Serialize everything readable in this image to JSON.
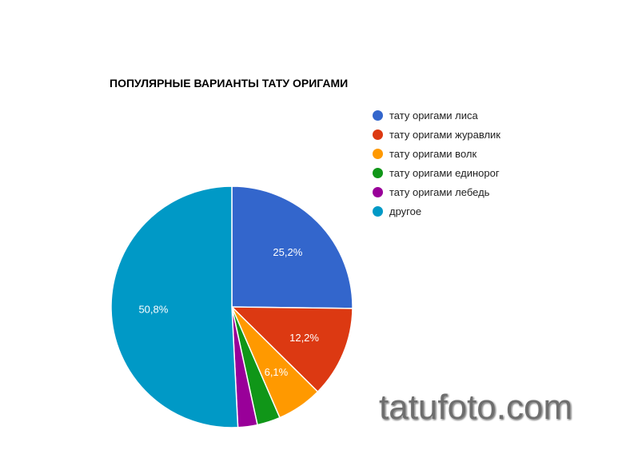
{
  "chart_data": {
    "type": "pie",
    "title": "ПОПУЛЯРНЫЕ ВАРИАНТЫ ТАТУ ОРИГАМИ",
    "legend_position": "right",
    "slices": [
      {
        "label": "тату оригами лиса",
        "value": 25.2,
        "display": "25,2%",
        "color": "#3366cc"
      },
      {
        "label": "тату оригами журавлик",
        "value": 12.2,
        "display": "12,2%",
        "color": "#dc3912"
      },
      {
        "label": "тату оригами волк",
        "value": 6.1,
        "display": "6,1%",
        "color": "#ff9900"
      },
      {
        "label": "тату оригами единорог",
        "value": 3.1,
        "display": "",
        "color": "#109618"
      },
      {
        "label": "тату оригами лебедь",
        "value": 2.6,
        "display": "",
        "color": "#990099"
      },
      {
        "label": "другое",
        "value": 50.8,
        "display": "50,8%",
        "color": "#0099c6"
      }
    ]
  },
  "watermark": "tatufoto.com"
}
